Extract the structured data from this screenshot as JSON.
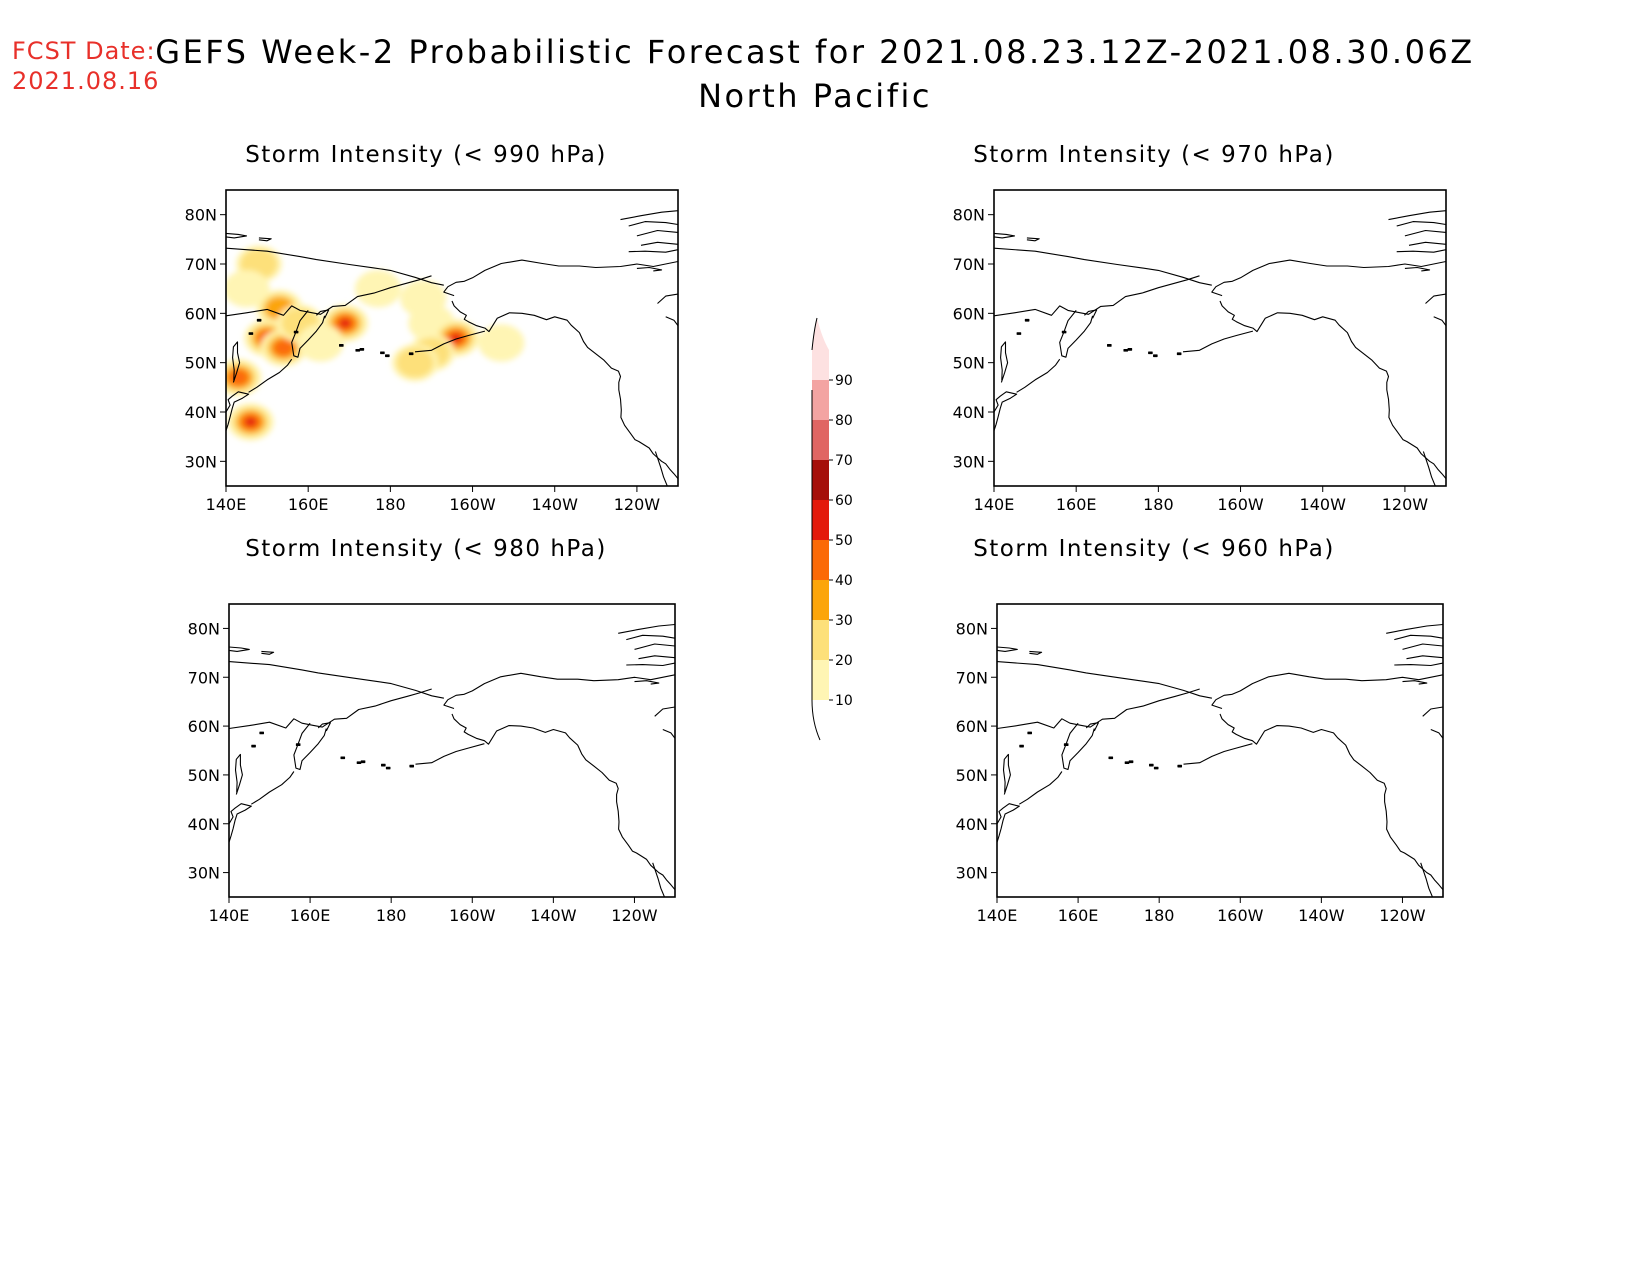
{
  "forecast_date": {
    "label": "FCST Date:",
    "value": "2021.08.16"
  },
  "title": {
    "line1": "GEFS Week-2 Probabilistic Forecast for 2021.08.23.12Z-2021.08.30.06Z",
    "line2": "North Pacific"
  },
  "panels": [
    {
      "title": "Storm Intensity (< 990 hPa)",
      "has_probability": true
    },
    {
      "title": "Storm Intensity (< 970 hPa)",
      "has_probability": false
    },
    {
      "title": "Storm Intensity (< 980 hPa)",
      "has_probability": false
    },
    {
      "title": "Storm Intensity (< 960 hPa)",
      "has_probability": false
    }
  ],
  "map_axes": {
    "x_ticks": [
      {
        "lon": 140,
        "label": "140E"
      },
      {
        "lon": 160,
        "label": "160E"
      },
      {
        "lon": 180,
        "label": "180"
      },
      {
        "lon": 200,
        "label": "160W"
      },
      {
        "lon": 220,
        "label": "140W"
      },
      {
        "lon": 240,
        "label": "120W"
      }
    ],
    "y_ticks": [
      {
        "lat": 80,
        "label": "80N"
      },
      {
        "lat": 70,
        "label": "70N"
      },
      {
        "lat": 60,
        "label": "60N"
      },
      {
        "lat": 50,
        "label": "50N"
      },
      {
        "lat": 40,
        "label": "40N"
      },
      {
        "lat": 30,
        "label": "30N"
      }
    ],
    "lon_range": [
      140,
      250
    ],
    "lat_range": [
      25,
      85
    ]
  },
  "colorbar": {
    "levels": [
      {
        "label": "10",
        "color": "#fff5b4"
      },
      {
        "label": "20",
        "color": "#fde07a"
      },
      {
        "label": "30",
        "color": "#fca50a"
      },
      {
        "label": "40",
        "color": "#fb6a07"
      },
      {
        "label": "50",
        "color": "#e31a0b"
      },
      {
        "label": "60",
        "color": "#a50f0a"
      },
      {
        "label": "70",
        "color": "#e06563"
      },
      {
        "label": "80",
        "color": "#f3a4a2"
      },
      {
        "label": "90",
        "color": "#fde1e1"
      }
    ]
  },
  "probability_features": [
    {
      "lon": 148,
      "lat": 70,
      "level": 1
    },
    {
      "lon": 145,
      "lat": 65,
      "level": 0
    },
    {
      "lon": 153,
      "lat": 61,
      "level": 2
    },
    {
      "lon": 150,
      "lat": 55,
      "level": 3
    },
    {
      "lon": 154,
      "lat": 53,
      "level": 3
    },
    {
      "lon": 158,
      "lat": 58,
      "level": 1
    },
    {
      "lon": 169,
      "lat": 58,
      "level": 4
    },
    {
      "lon": 163,
      "lat": 54,
      "level": 0
    },
    {
      "lon": 177,
      "lat": 65,
      "level": 0
    },
    {
      "lon": 188,
      "lat": 63,
      "level": 0
    },
    {
      "lon": 190,
      "lat": 58,
      "level": 0
    },
    {
      "lon": 196,
      "lat": 55,
      "level": 5
    },
    {
      "lon": 190,
      "lat": 52,
      "level": 1
    },
    {
      "lon": 186,
      "lat": 50,
      "level": 1
    },
    {
      "lon": 207,
      "lat": 54,
      "level": 0
    },
    {
      "lon": 143,
      "lat": 47,
      "level": 3
    },
    {
      "lon": 146,
      "lat": 38,
      "level": 5
    }
  ]
}
